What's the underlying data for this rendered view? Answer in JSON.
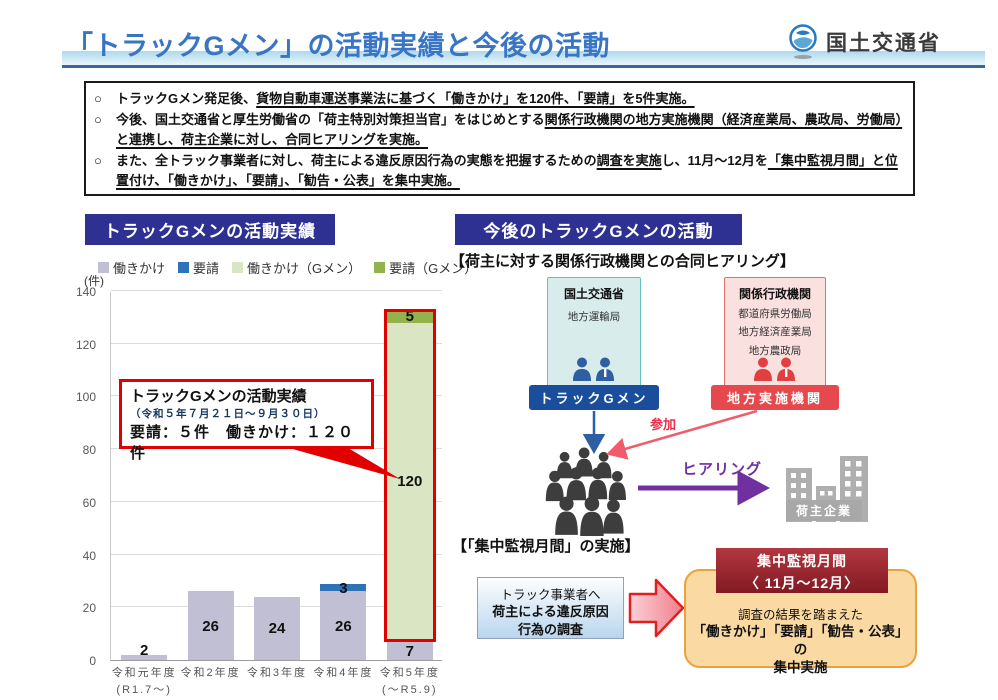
{
  "header": {
    "title": "「トラックGメン」の活動実績と今後の活動",
    "logo_text": "国土交通省"
  },
  "summary": {
    "marker": "○",
    "bullets": [
      {
        "segments": [
          {
            "text": "トラックGメン発足後、",
            "u": false
          },
          {
            "text": "貨物自動車運送事業法に基づく「働きかけ」を120件、「要請」を5件実施。",
            "u": true
          }
        ]
      },
      {
        "segments": [
          {
            "text": "今後、国土交通省と厚生労働省の「荷主特別対策担当官」をはじめとする",
            "u": false
          },
          {
            "text": "関係行政機関の地方実施機関（経済産業局、農政局、労働局）と連携し、荷主企業に対し、合同ヒアリングを実施。",
            "u": true
          }
        ]
      },
      {
        "segments": [
          {
            "text": "また、全トラック事業者に対し、荷主による違反原因行為の実態を把握するための",
            "u": false
          },
          {
            "text": "調査を実施",
            "u": true
          },
          {
            "text": "し、11月～12月を",
            "u": false
          },
          {
            "text": "「集中監視月間」と位置付け、「働きかけ」、「要請」、「勧告・公表」を集中実施。",
            "u": true
          }
        ]
      }
    ]
  },
  "left": {
    "section_title": "トラックGメンの活動実績",
    "unit_label": "(件)",
    "callout": {
      "line1": "トラックGメンの活動実績",
      "line2": "（令和５年７月２１日～９月３０日）",
      "line3": "要請：５件　働きかけ：１２０件"
    }
  },
  "chart_data": {
    "type": "bar",
    "stacked": true,
    "categories": [
      "令和元年度\n(R1.7～)",
      "令和2年度",
      "令和3年度",
      "令和4年度",
      "令和5年度\n(～R5.9)"
    ],
    "series": [
      {
        "name": "働きかけ",
        "color": "#c0bfd4",
        "values": [
          2,
          26,
          24,
          26,
          7
        ]
      },
      {
        "name": "要請",
        "color": "#2e73b8",
        "values": [
          0,
          0,
          0,
          3,
          1
        ]
      },
      {
        "name": "働きかけ（Gメン）",
        "color": "#d9e5c3",
        "values": [
          0,
          0,
          0,
          0,
          120
        ]
      },
      {
        "name": "要請（Gメン）",
        "color": "#93b24d",
        "values": [
          0,
          0,
          0,
          0,
          5
        ]
      }
    ],
    "ylabel": "(件)",
    "ylim": [
      0,
      140
    ],
    "ytick_step": 20,
    "grid": true,
    "legend_position": "top",
    "highlight": {
      "category_index": 4,
      "from_value": 7,
      "to_value": 133,
      "color": "#e00000"
    }
  },
  "right": {
    "section_title": "今後のトラックGメンの活動",
    "hearing_heading": "【荷主に対する関係行政機関との合同ヒアリング】",
    "mlit_box": {
      "title": "国土交通省",
      "sub": "地方運輸局",
      "label": "トラックGメン"
    },
    "agency_box": {
      "title": "関係行政機関",
      "sub1": "都道府県労働局",
      "sub2": "地方経済産業局",
      "sub3": "地方農政局",
      "label": "地方実施機関"
    },
    "sanka_label": "参加",
    "hearing_label": "ヒアリング",
    "shipper_label": "荷主企業",
    "monitor_heading": "【「集中監視月間」の実施】",
    "survey_box": {
      "line1": "トラック事業者へ",
      "line2": "荷主による違反原因",
      "line3": "行為の調査"
    },
    "monitor_box": {
      "header_line1": "集中監視月間",
      "header_line2": "〈 11月～12月〉",
      "body_line1": "調査の結果を踏まえた",
      "body_line2": "「働きかけ」「要請」「勧告・公表」の",
      "body_line3": "集中実施"
    }
  }
}
